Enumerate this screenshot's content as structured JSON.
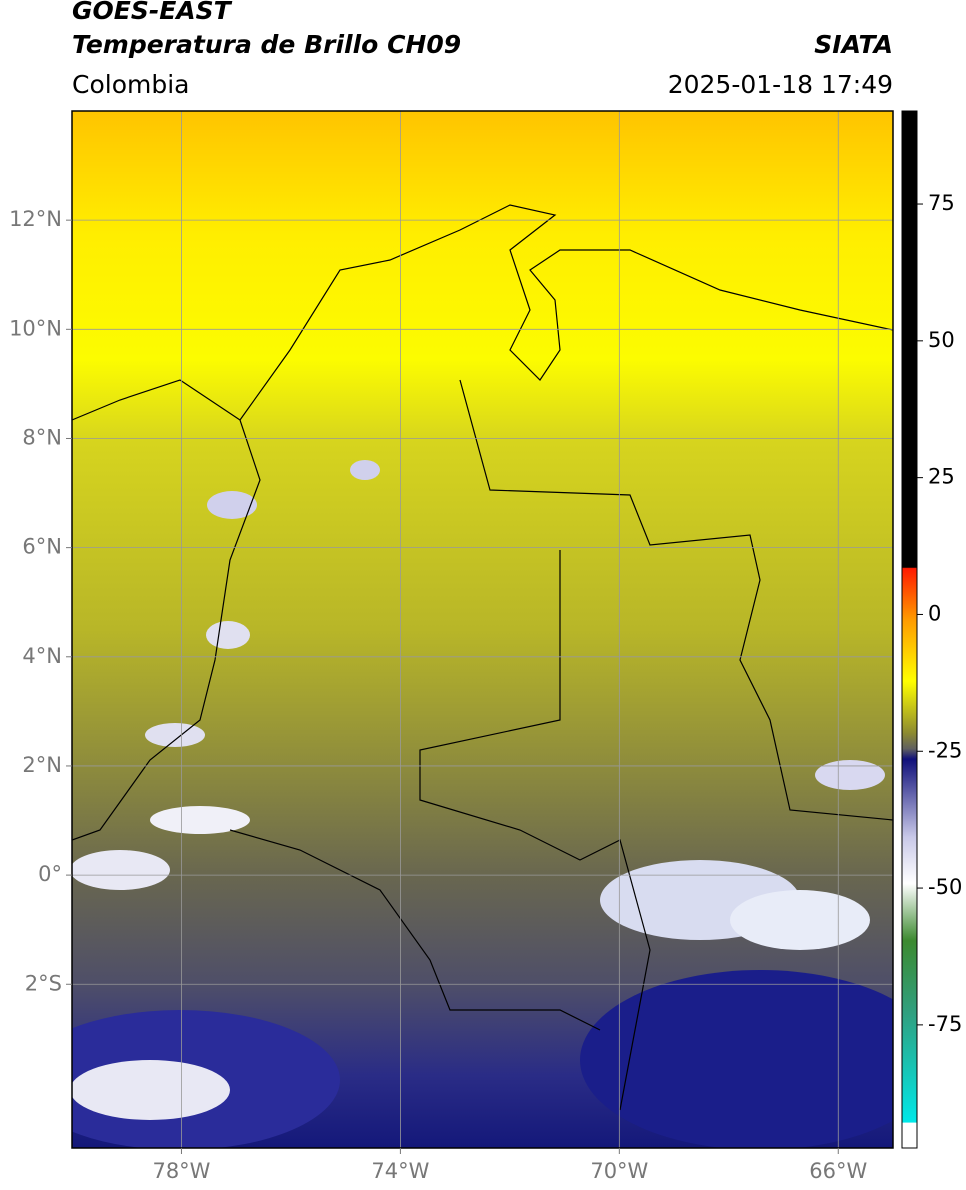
{
  "header": {
    "title": "GOES-EAST",
    "subtitle": "Temperatura de Brillo CH09",
    "region": "Colombia",
    "source": "SIATA",
    "datetime": "2025-01-18 17:49"
  },
  "map": {
    "lon_range": [
      -80,
      -65
    ],
    "lat_range": [
      -5,
      14
    ],
    "grid": true,
    "lon_ticks": [
      {
        "value": -78,
        "label": "78°W"
      },
      {
        "value": -74,
        "label": "74°W"
      },
      {
        "value": -70,
        "label": "70°W"
      },
      {
        "value": -66,
        "label": "66°W"
      }
    ],
    "lat_ticks": [
      {
        "value": 12,
        "label": "12°N"
      },
      {
        "value": 10,
        "label": "10°N"
      },
      {
        "value": 8,
        "label": "8°N"
      },
      {
        "value": 6,
        "label": "6°N"
      },
      {
        "value": 4,
        "label": "4°N"
      },
      {
        "value": 2,
        "label": "2°N"
      },
      {
        "value": 0,
        "label": "0°"
      },
      {
        "value": -2,
        "label": "2°S"
      }
    ]
  },
  "colorbar": {
    "range": [
      -97.5,
      92
    ],
    "ticks": [
      75,
      50,
      25,
      0,
      -25,
      -50,
      -75
    ]
  }
}
